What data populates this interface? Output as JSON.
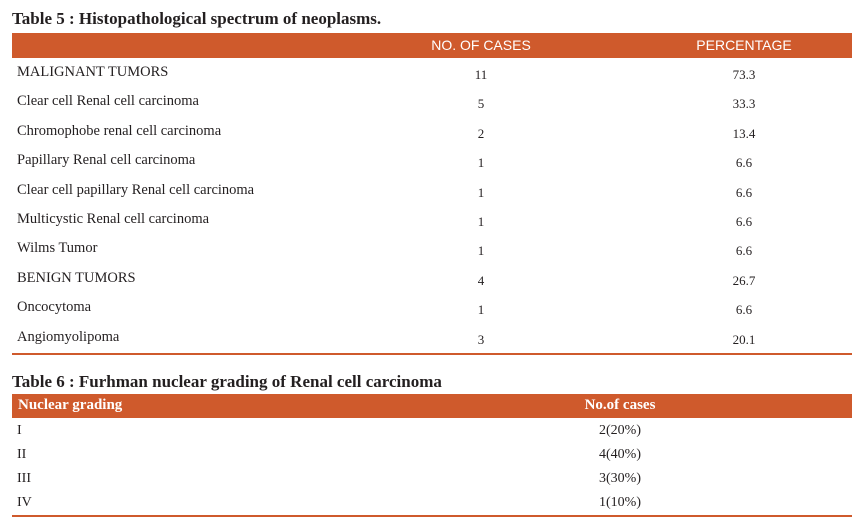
{
  "colors": {
    "accent": "#cf5a2c",
    "header_text": "#ffffff",
    "body_text": "#231f20"
  },
  "table5": {
    "caption": "Table 5 : Histopathological spectrum of neoplasms.",
    "headers": {
      "name": "",
      "cases": "NO. OF CASES",
      "percentage": "PERCENTAGE"
    },
    "rows": [
      {
        "name": "MALIGNANT TUMORS",
        "cases": "11",
        "percentage": "73.3"
      },
      {
        "name": "Clear cell Renal cell carcinoma",
        "cases": "5",
        "percentage": "33.3"
      },
      {
        "name": "Chromophobe renal cell carcinoma",
        "cases": "2",
        "percentage": "13.4"
      },
      {
        "name": "Papillary Renal cell carcinoma",
        "cases": "1",
        "percentage": "6.6"
      },
      {
        "name": "Clear cell papillary Renal cell carcinoma",
        "cases": "1",
        "percentage": "6.6"
      },
      {
        "name": "Multicystic Renal cell carcinoma",
        "cases": "1",
        "percentage": "6.6"
      },
      {
        "name": "Wilms Tumor",
        "cases": "1",
        "percentage": "6.6"
      },
      {
        "name": "BENIGN TUMORS",
        "cases": "4",
        "percentage": "26.7"
      },
      {
        "name": "Oncocytoma",
        "cases": "1",
        "percentage": "6.6"
      },
      {
        "name": "Angiomyolipoma",
        "cases": "3",
        "percentage": "20.1"
      }
    ]
  },
  "table6": {
    "caption": "Table 6 : Furhman nuclear grading of Renal cell carcinoma",
    "headers": {
      "grade": "Nuclear grading",
      "cases": "No.of cases"
    },
    "rows": [
      {
        "grade": "I",
        "cases": "2(20%)"
      },
      {
        "grade": "II",
        "cases": "4(40%)"
      },
      {
        "grade": "III",
        "cases": "3(30%)"
      },
      {
        "grade": "IV",
        "cases": "1(10%)"
      }
    ]
  }
}
